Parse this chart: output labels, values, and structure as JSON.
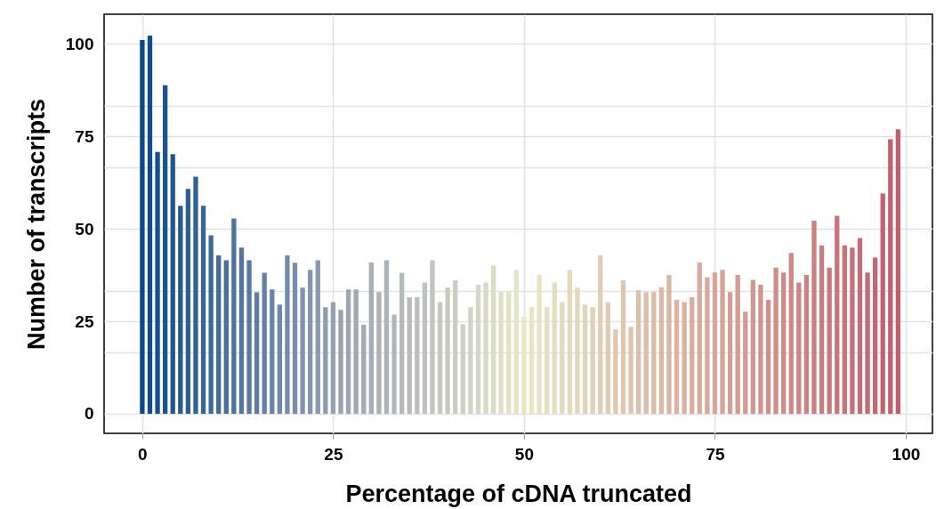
{
  "chart_data": {
    "type": "bar",
    "xlabel": "Percentage of cDNA truncated",
    "ylabel": "Number of transcripts",
    "x": [
      0,
      1,
      2,
      3,
      4,
      5,
      6,
      7,
      8,
      9,
      10,
      11,
      12,
      13,
      14,
      15,
      16,
      17,
      18,
      19,
      20,
      21,
      22,
      23,
      24,
      25,
      26,
      27,
      28,
      29,
      30,
      31,
      32,
      33,
      34,
      35,
      36,
      37,
      38,
      39,
      40,
      41,
      42,
      43,
      44,
      45,
      46,
      47,
      48,
      49,
      50,
      51,
      52,
      53,
      54,
      55,
      56,
      57,
      58,
      59,
      60,
      61,
      62,
      63,
      64,
      65,
      66,
      67,
      68,
      69,
      70,
      71,
      72,
      73,
      74,
      75,
      76,
      77,
      78,
      79,
      80,
      81,
      82,
      83,
      84,
      85,
      86,
      87,
      88,
      89,
      90,
      91,
      92,
      93,
      94,
      95,
      96,
      97,
      98,
      99
    ],
    "values": [
      101,
      102.2,
      70.8,
      88.8,
      70.2,
      56.2,
      60.8,
      64.1,
      56.2,
      48.2,
      42.8,
      41.5,
      52.8,
      44.9,
      41.5,
      32.8,
      38.1,
      33.6,
      29.5,
      42.8,
      40.8,
      34.1,
      38.9,
      41.5,
      28.8,
      30.2,
      28.1,
      33.6,
      33.6,
      24.1,
      40.9,
      32.9,
      41.5,
      26.8,
      38.1,
      31.5,
      31.5,
      35.5,
      41.5,
      30.2,
      34.1,
      36.1,
      24.2,
      28.8,
      34.9,
      35.5,
      40.1,
      32.9,
      32.9,
      38.9,
      26.2,
      28.8,
      37.5,
      28.8,
      35.5,
      30.2,
      38.9,
      34.1,
      29.5,
      28.8,
      42.9,
      30.2,
      22.8,
      36.1,
      23.5,
      33.4,
      32.9,
      32.9,
      34.2,
      37.5,
      30.8,
      30.2,
      31.5,
      40.9,
      36.9,
      38.2,
      38.9,
      32.9,
      37.5,
      27.6,
      36.2,
      34.9,
      30.8,
      39.5,
      38.2,
      43.5,
      35.5,
      37.5,
      52.2,
      45.5,
      39.5,
      53.5,
      45.5,
      44.9,
      47.5,
      38.2,
      42.2,
      59.5,
      74.2,
      76.9
    ],
    "colors": [
      "#0a488e",
      "#104c8f",
      "#154f91",
      "#1b5392",
      "#205694",
      "#265a95",
      "#2c5d97",
      "#316198",
      "#37649a",
      "#3c689b",
      "#426b9c",
      "#486f9e",
      "#4d729f",
      "#5376a1",
      "#5879a2",
      "#5e7da4",
      "#6480a5",
      "#6984a6",
      "#6f87a8",
      "#748ba9",
      "#7a8eab",
      "#8092ac",
      "#8595ae",
      "#8b99af",
      "#909cb1",
      "#96a0b2",
      "#99a3b3",
      "#9da6b4",
      "#a0a9b5",
      "#a3acb6",
      "#a6aeb6",
      "#aab1b7",
      "#adb4b8",
      "#b0b7b9",
      "#b4baba",
      "#b7bdbb",
      "#bac0bc",
      "#bdc3bd",
      "#c1c5bd",
      "#c4c8be",
      "#c7cbbf",
      "#cacec0",
      "#ced1c1",
      "#d1d4c2",
      "#d4d7c3",
      "#d8dac4",
      "#dbdcc4",
      "#dedfc5",
      "#e1e2c6",
      "#e5e5c7",
      "#e8e8c8",
      "#e7e5c6",
      "#e7e3c4",
      "#e6e0c2",
      "#e5ddc1",
      "#e4dbbf",
      "#e4d8bd",
      "#e3d6bb",
      "#e2d3b9",
      "#e2d0b7",
      "#e1ceb6",
      "#e0cbb4",
      "#dfc8b2",
      "#dfc6b0",
      "#dec3ae",
      "#ddc0ac",
      "#dcbeab",
      "#dcbba9",
      "#dbb8a7",
      "#dab6a5",
      "#dab3a3",
      "#d9b1a1",
      "#d8aea0",
      "#d7ab9e",
      "#d7a99c",
      "#d6a69a",
      "#d5a398",
      "#d4a096",
      "#d39d94",
      "#d29a92",
      "#d19790",
      "#d0948e",
      "#d0918d",
      "#cf8e8b",
      "#ce8b89",
      "#cd8887",
      "#cc8585",
      "#cb8283",
      "#ca7f81",
      "#c97c7f",
      "#c8797d",
      "#c7767b",
      "#c67379",
      "#c67078",
      "#c56d76",
      "#c46a74",
      "#c36772",
      "#c26470",
      "#c1616e",
      "#c05e6c"
    ],
    "xlim": [
      -5,
      103.5
    ],
    "xticks": [
      0,
      25,
      50,
      75,
      100
    ],
    "ylim": [
      -5.3,
      108
    ],
    "yticks": [
      0,
      {
        "value": 16.7,
        "label": null
      },
      25,
      {
        "value": 33.3,
        "label": null
      },
      50,
      {
        "value": 66.7,
        "label": null
      },
      75,
      {
        "value": 83.3,
        "label": null
      },
      100
    ],
    "grid": true
  }
}
